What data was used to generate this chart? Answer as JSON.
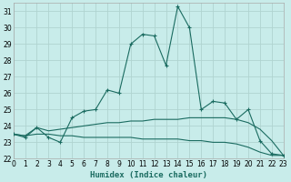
{
  "xlabel": "Humidex (Indice chaleur)",
  "bg_color": "#c8ecea",
  "grid_color": "#b0d4d0",
  "line_color": "#1a6b60",
  "xlim": [
    0,
    23
  ],
  "ylim": [
    22,
    31.5
  ],
  "xticks": [
    0,
    1,
    2,
    3,
    4,
    5,
    6,
    7,
    8,
    9,
    10,
    11,
    12,
    13,
    14,
    15,
    16,
    17,
    18,
    19,
    20,
    21,
    22,
    23
  ],
  "yticks": [
    22,
    23,
    24,
    25,
    26,
    27,
    28,
    29,
    30,
    31
  ],
  "line1_x": [
    0,
    1,
    2,
    3,
    4,
    5,
    6,
    7,
    8,
    9,
    10,
    11,
    12,
    13,
    14,
    15,
    16,
    17,
    18,
    19,
    20,
    21,
    22,
    23
  ],
  "line1_y": [
    23.5,
    23.3,
    23.9,
    23.3,
    23.0,
    24.5,
    24.9,
    25.0,
    26.2,
    26.0,
    29.0,
    29.6,
    29.5,
    27.7,
    31.3,
    30.0,
    25.0,
    25.5,
    25.4,
    24.4,
    25.0,
    23.1,
    22.3,
    22.2
  ],
  "line2_x": [
    0,
    1,
    2,
    3,
    4,
    5,
    6,
    7,
    8,
    9,
    10,
    11,
    12,
    13,
    14,
    15,
    16,
    17,
    18,
    19,
    20,
    21,
    22,
    23
  ],
  "line2_y": [
    23.5,
    23.4,
    23.9,
    23.7,
    23.8,
    23.9,
    24.0,
    24.1,
    24.2,
    24.2,
    24.3,
    24.3,
    24.4,
    24.4,
    24.4,
    24.5,
    24.5,
    24.5,
    24.5,
    24.4,
    24.2,
    23.8,
    23.1,
    22.2
  ],
  "line3_x": [
    0,
    1,
    2,
    3,
    4,
    5,
    6,
    7,
    8,
    9,
    10,
    11,
    12,
    13,
    14,
    15,
    16,
    17,
    18,
    19,
    20,
    21,
    22,
    23
  ],
  "line3_y": [
    23.5,
    23.4,
    23.5,
    23.5,
    23.4,
    23.4,
    23.3,
    23.3,
    23.3,
    23.3,
    23.3,
    23.2,
    23.2,
    23.2,
    23.2,
    23.1,
    23.1,
    23.0,
    23.0,
    22.9,
    22.7,
    22.4,
    22.2,
    22.2
  ],
  "tick_fontsize": 5.5,
  "xlabel_fontsize": 6.5,
  "linewidth": 0.8,
  "marker_size": 2.5,
  "marker_ew": 0.8
}
